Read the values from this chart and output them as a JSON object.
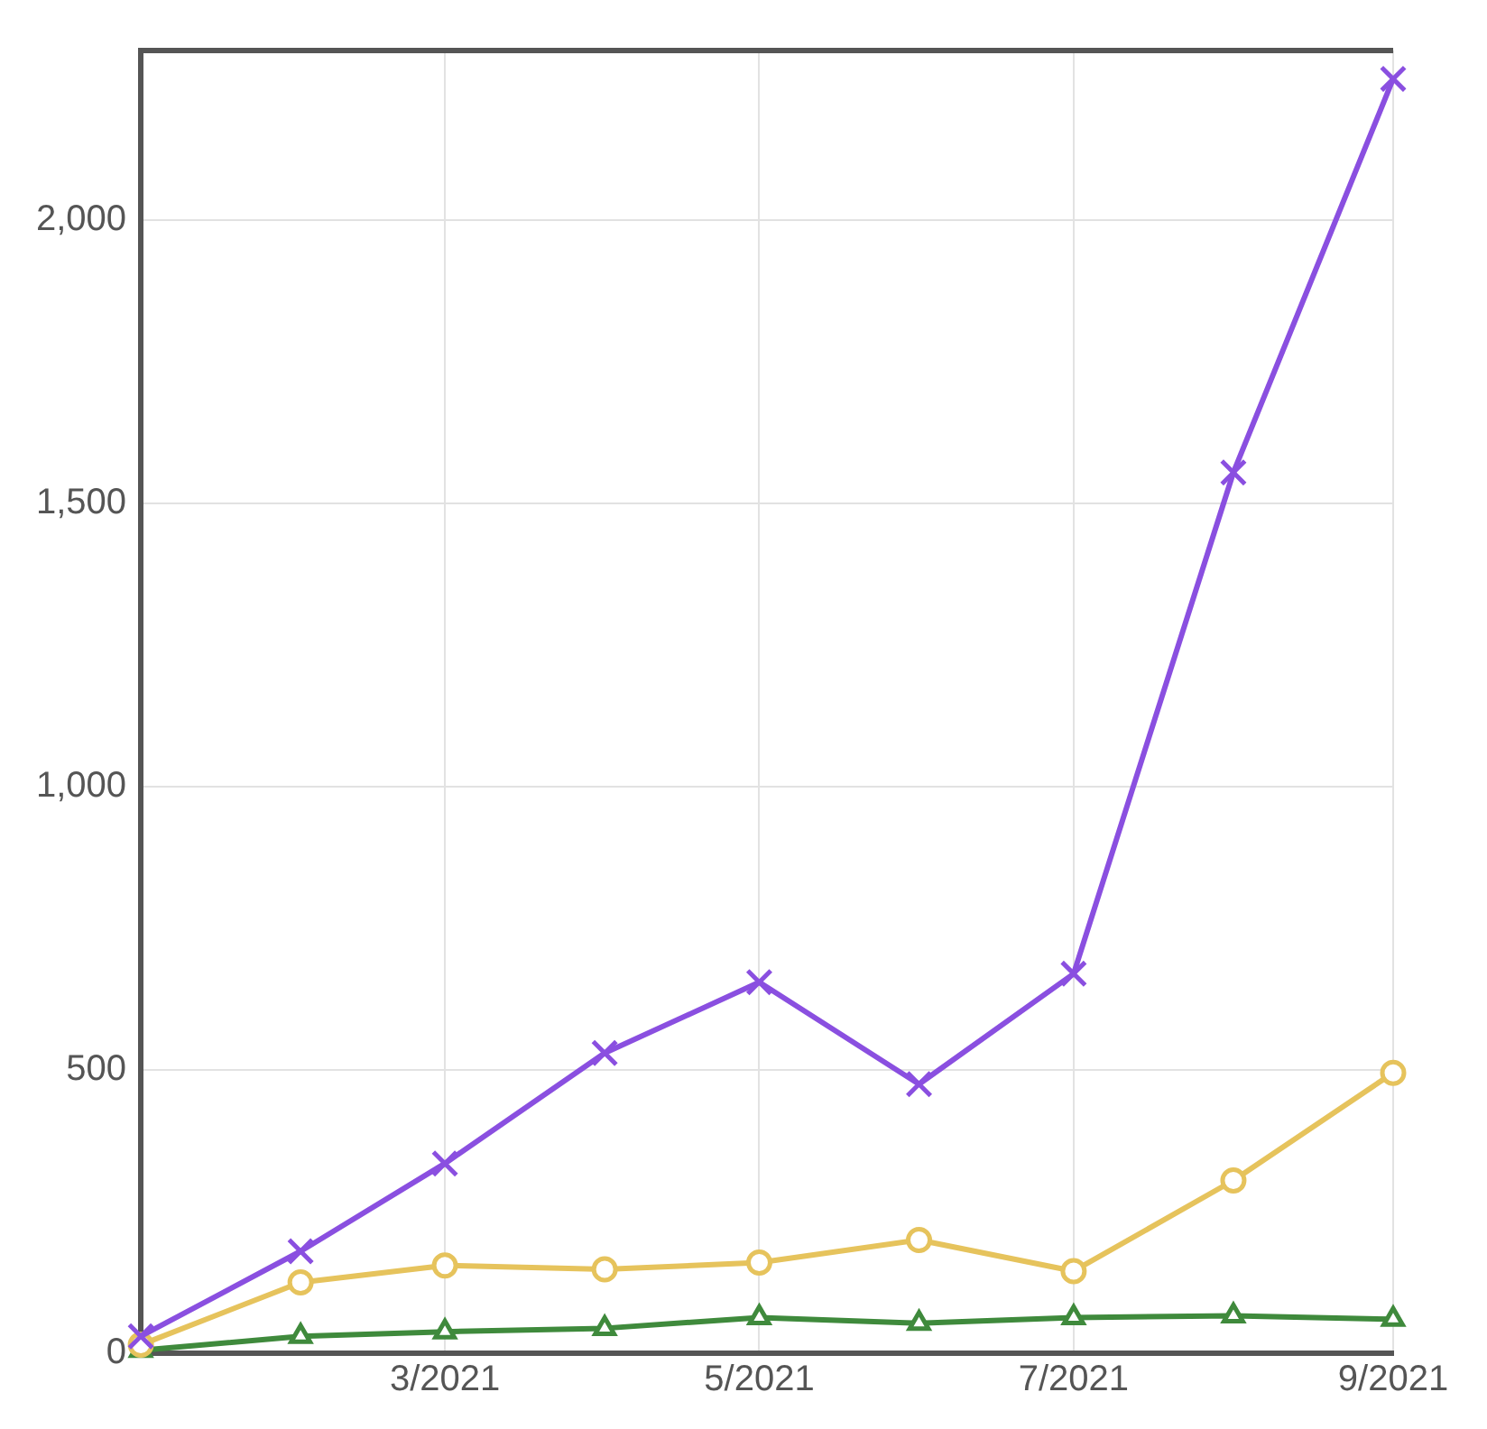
{
  "chart_data": {
    "type": "line",
    "x": [
      "2021-01",
      "2021-02",
      "2021-03",
      "2021-04",
      "2021-05",
      "2021-06",
      "2021-07",
      "2021-08",
      "2021-09"
    ],
    "series": [
      {
        "color": "#8a4fe0",
        "marker": "cross",
        "values": [
          30,
          180,
          335,
          530,
          655,
          475,
          670,
          1555,
          2250
        ]
      },
      {
        "color": "#e6c35c",
        "marker": "circle",
        "values": [
          15,
          125,
          155,
          148,
          160,
          200,
          145,
          305,
          495
        ]
      },
      {
        "color": "#3f8a3c",
        "marker": "triangle",
        "values": [
          5,
          30,
          38,
          44,
          63,
          53,
          63,
          66,
          60
        ]
      }
    ],
    "xlim": [
      "2021-01",
      "2021-09"
    ],
    "xticks": [
      {
        "value": "2021-03",
        "label": "3/2021"
      },
      {
        "value": "2021-05",
        "label": "5/2021"
      },
      {
        "value": "2021-07",
        "label": "7/2021"
      },
      {
        "value": "2021-09",
        "label": "9/2021"
      }
    ],
    "ylim": [
      0,
      2300
    ],
    "yticks": [
      {
        "value": 0,
        "label": "0"
      },
      {
        "value": 500,
        "label": "500"
      },
      {
        "value": 1000,
        "label": "1,000"
      },
      {
        "value": 1500,
        "label": "1,500"
      },
      {
        "value": 2000,
        "label": "2,000"
      }
    ],
    "grid": true,
    "legend": false
  }
}
